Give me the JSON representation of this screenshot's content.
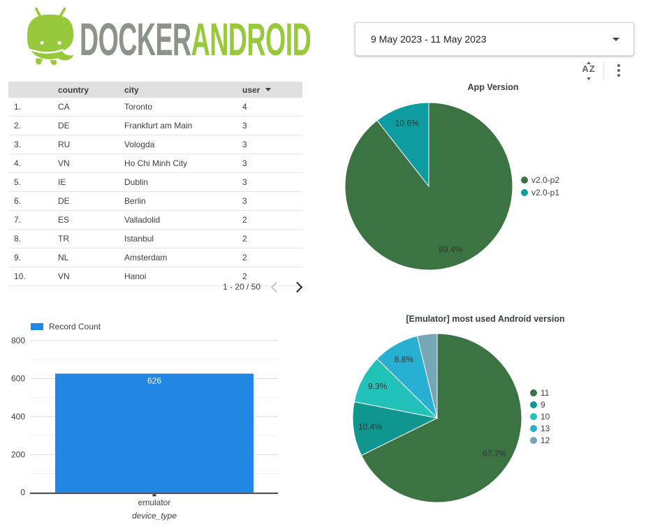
{
  "logo": {
    "docker": "DOCKER",
    "android": "ANDROID",
    "green": "#98c93c",
    "grey": "#8d938b"
  },
  "header": {
    "date_range": "9 May 2023 - 11 May 2023"
  },
  "toolbar": {
    "sort_letter_a": "A",
    "sort_letter_z": "Z"
  },
  "table": {
    "columns": [
      "country",
      "city",
      "user"
    ],
    "sorted_column": "user",
    "sort_direction": "desc",
    "rows": [
      {
        "index": "1.",
        "country": "CA",
        "city": "Toronto",
        "user": "4"
      },
      {
        "index": "2.",
        "country": "DE",
        "city": "Frankfurt am Main",
        "user": "3"
      },
      {
        "index": "3.",
        "country": "RU",
        "city": "Vologda",
        "user": "3"
      },
      {
        "index": "4.",
        "country": "VN",
        "city": "Ho Chi Minh City",
        "user": "3"
      },
      {
        "index": "5.",
        "country": "IE",
        "city": "Dublin",
        "user": "3"
      },
      {
        "index": "6.",
        "country": "DE",
        "city": "Berlin",
        "user": "3"
      },
      {
        "index": "7.",
        "country": "ES",
        "city": "Valladolid",
        "user": "2"
      },
      {
        "index": "8.",
        "country": "TR",
        "city": "Istanbul",
        "user": "2"
      },
      {
        "index": "9.",
        "country": "NL",
        "city": "Amsterdam",
        "user": "2"
      },
      {
        "index": "10.",
        "country": "VN",
        "city": "Hanoi",
        "user": "2"
      }
    ],
    "pagination": {
      "range": "1 - 20 / 50",
      "prev_enabled": false,
      "next_enabled": true
    }
  },
  "chart_data": [
    {
      "id": "record-count-bar",
      "type": "bar",
      "legend": [
        "Record Count"
      ],
      "categories": [
        "emulator"
      ],
      "values": [
        626
      ],
      "xlabel": "device_type",
      "ylabel": "",
      "ylim": [
        0,
        800
      ],
      "yticks": [
        0,
        200,
        400,
        600,
        800
      ],
      "grid": true,
      "bar_color": "#2287e3",
      "bar_label_color": "#ffffff"
    },
    {
      "id": "app-version-pie",
      "type": "pie",
      "title": "App Version",
      "legend_position": "right",
      "slices": [
        {
          "label": "v2.0-p2",
          "pct": 89.4,
          "color": "#3c7342",
          "show_label": true
        },
        {
          "label": "v2.0-p1",
          "pct": 10.6,
          "color": "#0d9da0",
          "show_label": true
        }
      ]
    },
    {
      "id": "android-version-pie",
      "type": "pie",
      "title": "[Emulator] most used Android version",
      "legend_position": "right",
      "slices": [
        {
          "label": "11",
          "pct": 67.7,
          "color": "#3c7342",
          "show_label": true
        },
        {
          "label": "9",
          "pct": 10.4,
          "color": "#0f968f",
          "show_label": true
        },
        {
          "label": "10",
          "pct": 9.3,
          "color": "#23c2b9",
          "show_label": true
        },
        {
          "label": "13",
          "pct": 8.8,
          "color": "#27b0d2",
          "show_label": true
        },
        {
          "label": "12",
          "pct": 3.8,
          "color": "#75a7b7",
          "show_label": false
        }
      ]
    }
  ]
}
